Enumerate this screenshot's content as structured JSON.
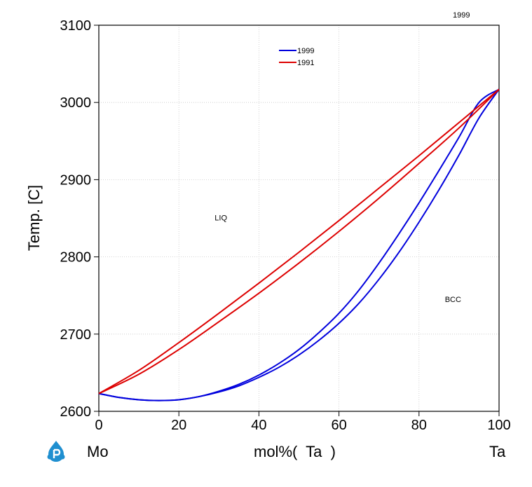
{
  "chart_data": {
    "type": "line",
    "title": "",
    "corner_label": "1999",
    "xlabel": "mol%(  Ta  )",
    "ylabel": "Temp.  [C]",
    "x_left_label": "Mo",
    "x_right_label": "Ta",
    "xlim": [
      0,
      100
    ],
    "ylim": [
      2600,
      3100
    ],
    "x_ticks": [
      "0",
      "20",
      "40",
      "60",
      "80",
      "100"
    ],
    "y_ticks": [
      "2600",
      "2700",
      "2800",
      "2900",
      "3000",
      "3100"
    ],
    "grid": true,
    "legend_position": "top-center",
    "region_labels": [
      {
        "text": "LIQ",
        "x": 30.5,
        "y": 2851
      },
      {
        "text": "BCC",
        "x": 88.5,
        "y": 2745
      }
    ],
    "series": [
      {
        "name": "1999",
        "color": "#0000dd",
        "curves": [
          {
            "x": [
              0,
              5,
              10,
              15,
              20,
              25,
              30,
              35,
              40,
              45,
              50,
              55,
              60,
              65,
              70,
              75,
              80,
              85,
              90,
              95,
              100
            ],
            "y": [
              2623,
              2618,
              2615,
              2614,
              2615,
              2619,
              2626,
              2635,
              2647,
              2662,
              2680,
              2702,
              2727,
              2757,
              2792,
              2830,
              2870,
              2912,
              2955,
              3000,
              3017
            ]
          },
          {
            "x": [
              0,
              5,
              10,
              15,
              20,
              25,
              30,
              35,
              40,
              45,
              50,
              55,
              60,
              65,
              70,
              75,
              80,
              85,
              90,
              95,
              100
            ],
            "y": [
              2623,
              2618,
              2615,
              2614,
              2615,
              2619,
              2625,
              2633,
              2644,
              2657,
              2673,
              2692,
              2714,
              2740,
              2771,
              2806,
              2845,
              2887,
              2932,
              2980,
              3017
            ]
          }
        ]
      },
      {
        "name": "1991",
        "color": "#dd0000",
        "curves": [
          {
            "x": [
              0,
              10,
              20,
              30,
              40,
              50,
              60,
              70,
              80,
              90,
              100
            ],
            "y": [
              2623,
              2653,
              2689,
              2727,
              2766,
              2806,
              2847,
              2889,
              2931,
              2974,
              3017
            ]
          },
          {
            "x": [
              0,
              10,
              20,
              30,
              40,
              50,
              60,
              70,
              80,
              90,
              100
            ],
            "y": [
              2623,
              2648,
              2680,
              2716,
              2753,
              2792,
              2833,
              2876,
              2921,
              2967,
              3017
            ]
          }
        ]
      }
    ]
  },
  "logo": {
    "icon": "p-drop-logo-icon",
    "color": "#1f8fd0"
  }
}
